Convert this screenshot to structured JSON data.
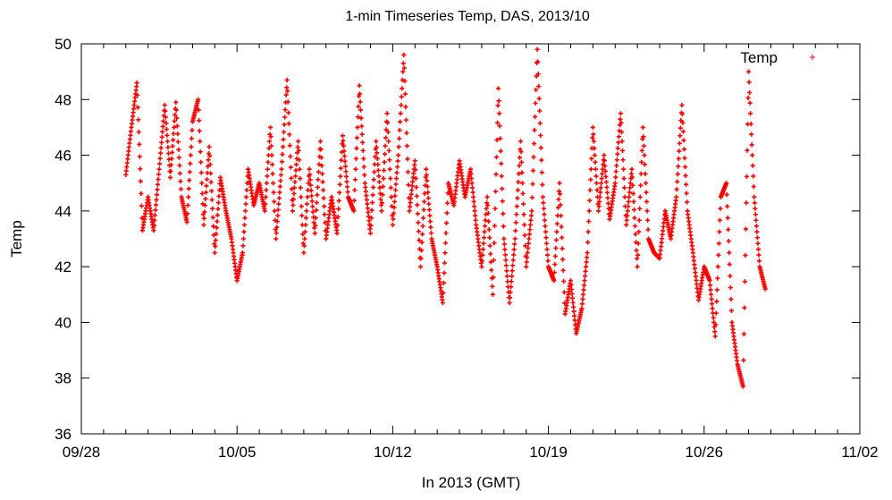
{
  "chart_data": {
    "type": "scatter",
    "title": "1-min Timeseries Temp, DAS, 2013/10",
    "xlabel": "In 2013 (GMT)",
    "ylabel": "Temp",
    "x_start": "2013-09-28",
    "x_end": "2013-11-02",
    "xticks": [
      "09/28",
      "10/05",
      "10/12",
      "10/19",
      "10/26",
      "11/02"
    ],
    "ylim": [
      36,
      50
    ],
    "yticks": [
      36,
      38,
      40,
      42,
      44,
      46,
      48,
      50
    ],
    "grid": false,
    "legend_position": "top-right",
    "series": [
      {
        "name": "Temp",
        "color": "#ff0000",
        "marker": "plus",
        "points": [
          [
            "2013-09-30 00:00",
            45.3
          ],
          [
            "2013-09-30 06:00",
            47.0
          ],
          [
            "2013-09-30 12:00",
            48.6
          ],
          [
            "2013-09-30 18:00",
            43.3
          ],
          [
            "2013-10-01 00:00",
            44.5
          ],
          [
            "2013-10-01 06:00",
            43.3
          ],
          [
            "2013-10-01 12:00",
            45.5
          ],
          [
            "2013-10-01 18:00",
            47.8
          ],
          [
            "2013-10-02 00:00",
            45.2
          ],
          [
            "2013-10-02 06:00",
            47.9
          ],
          [
            "2013-10-02 12:00",
            44.5
          ],
          [
            "2013-10-02 18:00",
            43.6
          ],
          [
            "2013-10-03 00:00",
            47.2
          ],
          [
            "2013-10-03 06:00",
            48.0
          ],
          [
            "2013-10-03 12:00",
            43.5
          ],
          [
            "2013-10-03 18:00",
            46.3
          ],
          [
            "2013-10-04 00:00",
            42.5
          ],
          [
            "2013-10-04 06:00",
            45.2
          ],
          [
            "2013-10-04 12:00",
            44.0
          ],
          [
            "2013-10-04 18:00",
            43.0
          ],
          [
            "2013-10-05 00:00",
            41.5
          ],
          [
            "2013-10-05 06:00",
            42.5
          ],
          [
            "2013-10-05 12:00",
            45.5
          ],
          [
            "2013-10-05 18:00",
            44.2
          ],
          [
            "2013-10-06 00:00",
            45.0
          ],
          [
            "2013-10-06 06:00",
            44.0
          ],
          [
            "2013-10-06 12:00",
            47.0
          ],
          [
            "2013-10-06 18:00",
            43.0
          ],
          [
            "2013-10-07 00:00",
            45.5
          ],
          [
            "2013-10-07 06:00",
            48.7
          ],
          [
            "2013-10-07 12:00",
            44.0
          ],
          [
            "2013-10-07 18:00",
            46.5
          ],
          [
            "2013-10-08 00:00",
            42.5
          ],
          [
            "2013-10-08 06:00",
            45.5
          ],
          [
            "2013-10-08 12:00",
            43.2
          ],
          [
            "2013-10-08 18:00",
            46.5
          ],
          [
            "2013-10-09 00:00",
            43.0
          ],
          [
            "2013-10-09 06:00",
            44.5
          ],
          [
            "2013-10-09 12:00",
            43.2
          ],
          [
            "2013-10-09 18:00",
            46.7
          ],
          [
            "2013-10-10 00:00",
            44.5
          ],
          [
            "2013-10-10 06:00",
            44.0
          ],
          [
            "2013-10-10 12:00",
            48.5
          ],
          [
            "2013-10-10 18:00",
            45.0
          ],
          [
            "2013-10-11 00:00",
            43.2
          ],
          [
            "2013-10-11 06:00",
            46.5
          ],
          [
            "2013-10-11 12:00",
            44.0
          ],
          [
            "2013-10-11 18:00",
            47.5
          ],
          [
            "2013-10-12 00:00",
            43.5
          ],
          [
            "2013-10-12 06:00",
            46.0
          ],
          [
            "2013-10-12 12:00",
            49.6
          ],
          [
            "2013-10-12 18:00",
            44.0
          ],
          [
            "2013-10-13 00:00",
            45.8
          ],
          [
            "2013-10-13 06:00",
            42.0
          ],
          [
            "2013-10-13 12:00",
            45.5
          ],
          [
            "2013-10-13 18:00",
            43.0
          ],
          [
            "2013-10-14 00:00",
            42.0
          ],
          [
            "2013-10-14 06:00",
            40.7
          ],
          [
            "2013-10-14 12:00",
            45.0
          ],
          [
            "2013-10-14 18:00",
            44.2
          ],
          [
            "2013-10-15 00:00",
            45.8
          ],
          [
            "2013-10-15 06:00",
            44.5
          ],
          [
            "2013-10-15 12:00",
            45.5
          ],
          [
            "2013-10-15 18:00",
            43.5
          ],
          [
            "2013-10-16 00:00",
            42.0
          ],
          [
            "2013-10-16 06:00",
            44.5
          ],
          [
            "2013-10-16 12:00",
            41.0
          ],
          [
            "2013-10-16 18:00",
            48.4
          ],
          [
            "2013-10-17 00:00",
            43.0
          ],
          [
            "2013-10-17 06:00",
            40.7
          ],
          [
            "2013-10-17 12:00",
            43.0
          ],
          [
            "2013-10-17 18:00",
            46.5
          ],
          [
            "2013-10-18 00:00",
            42.0
          ],
          [
            "2013-10-18 06:00",
            44.0
          ],
          [
            "2013-10-18 12:00",
            49.8
          ],
          [
            "2013-10-18 18:00",
            44.5
          ],
          [
            "2013-10-19 00:00",
            42.0
          ],
          [
            "2013-10-19 06:00",
            41.5
          ],
          [
            "2013-10-19 12:00",
            45.0
          ],
          [
            "2013-10-19 18:00",
            40.3
          ],
          [
            "2013-10-20 00:00",
            41.5
          ],
          [
            "2013-10-20 06:00",
            39.6
          ],
          [
            "2013-10-20 12:00",
            40.5
          ],
          [
            "2013-10-20 18:00",
            42.5
          ],
          [
            "2013-10-21 00:00",
            47.0
          ],
          [
            "2013-10-21 06:00",
            44.0
          ],
          [
            "2013-10-21 12:00",
            46.0
          ],
          [
            "2013-10-21 18:00",
            43.7
          ],
          [
            "2013-10-22 00:00",
            45.0
          ],
          [
            "2013-10-22 06:00",
            47.5
          ],
          [
            "2013-10-22 12:00",
            43.5
          ],
          [
            "2013-10-22 18:00",
            45.5
          ],
          [
            "2013-10-23 00:00",
            42.0
          ],
          [
            "2013-10-23 06:00",
            47.0
          ],
          [
            "2013-10-23 12:00",
            43.0
          ],
          [
            "2013-10-23 18:00",
            42.5
          ],
          [
            "2013-10-24 00:00",
            42.3
          ],
          [
            "2013-10-24 06:00",
            44.0
          ],
          [
            "2013-10-24 12:00",
            43.0
          ],
          [
            "2013-10-24 18:00",
            44.5
          ],
          [
            "2013-10-25 00:00",
            47.8
          ],
          [
            "2013-10-25 06:00",
            44.0
          ],
          [
            "2013-10-25 12:00",
            42.5
          ],
          [
            "2013-10-25 18:00",
            40.8
          ],
          [
            "2013-10-26 00:00",
            42.0
          ],
          [
            "2013-10-26 06:00",
            41.5
          ],
          [
            "2013-10-26 12:00",
            39.5
          ],
          [
            "2013-10-26 18:00",
            44.5
          ],
          [
            "2013-10-27 00:00",
            45.0
          ],
          [
            "2013-10-27 06:00",
            40.0
          ],
          [
            "2013-10-27 12:00",
            38.5
          ],
          [
            "2013-10-27 18:00",
            37.7
          ],
          [
            "2013-10-28 00:00",
            49.0
          ],
          [
            "2013-10-28 06:00",
            44.5
          ],
          [
            "2013-10-28 12:00",
            42.0
          ],
          [
            "2013-10-28 18:00",
            41.2
          ]
        ]
      }
    ]
  }
}
